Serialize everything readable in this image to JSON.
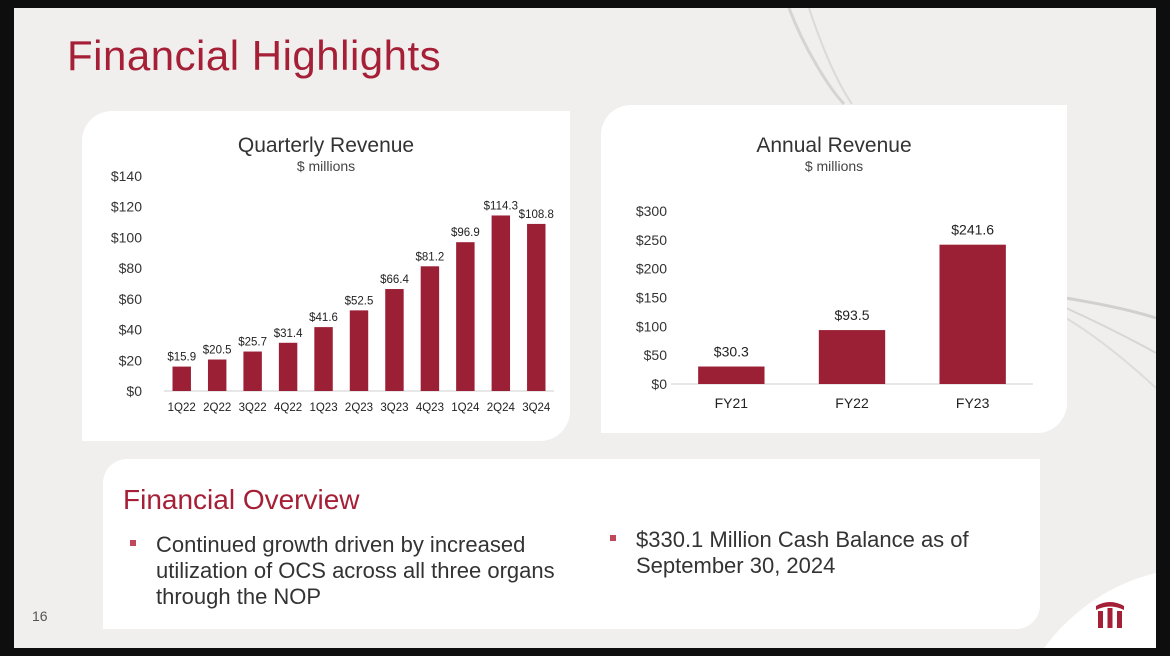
{
  "slide": {
    "title": "Financial Highlights",
    "page_number": "16"
  },
  "overview": {
    "title": "Financial Overview",
    "bullets": [
      "Continued growth driven by increased utilization of OCS across all three organs through the NOP",
      "$330.1 Million Cash Balance as of September 30, 2024"
    ]
  },
  "colors": {
    "accent": "#a51f36",
    "bar": "#9b1f35",
    "text": "#333333"
  },
  "chart_data": [
    {
      "type": "bar",
      "title": "Quarterly Revenue",
      "subtitle": "$ millions",
      "categories": [
        "1Q22",
        "2Q22",
        "3Q22",
        "4Q22",
        "1Q23",
        "2Q23",
        "3Q23",
        "4Q23",
        "1Q24",
        "2Q24",
        "3Q24"
      ],
      "values": [
        15.9,
        20.5,
        25.7,
        31.4,
        41.6,
        52.5,
        66.4,
        81.2,
        96.9,
        114.3,
        108.8
      ],
      "value_labels": [
        "$15.9",
        "$20.5",
        "$25.7",
        "$31.4",
        "$41.6",
        "$52.5",
        "$66.4",
        "$81.2",
        "$96.9",
        "$114.3",
        "$108.8"
      ],
      "ylim": [
        0,
        140
      ],
      "yticks": [
        "$0",
        "$20",
        "$40",
        "$60",
        "$80",
        "$100",
        "$120",
        "$140"
      ],
      "xlabel": "",
      "ylabel": "",
      "grid": false
    },
    {
      "type": "bar",
      "title": "Annual Revenue",
      "subtitle": "$ millions",
      "categories": [
        "FY21",
        "FY22",
        "FY23"
      ],
      "values": [
        30.3,
        93.5,
        241.6
      ],
      "value_labels": [
        "$30.3",
        "$93.5",
        "$241.6"
      ],
      "ylim": [
        0,
        300
      ],
      "yticks": [
        "$0",
        "$50",
        "$100",
        "$150",
        "$200",
        "$250",
        "$300"
      ],
      "xlabel": "",
      "ylabel": "",
      "grid": false
    }
  ]
}
